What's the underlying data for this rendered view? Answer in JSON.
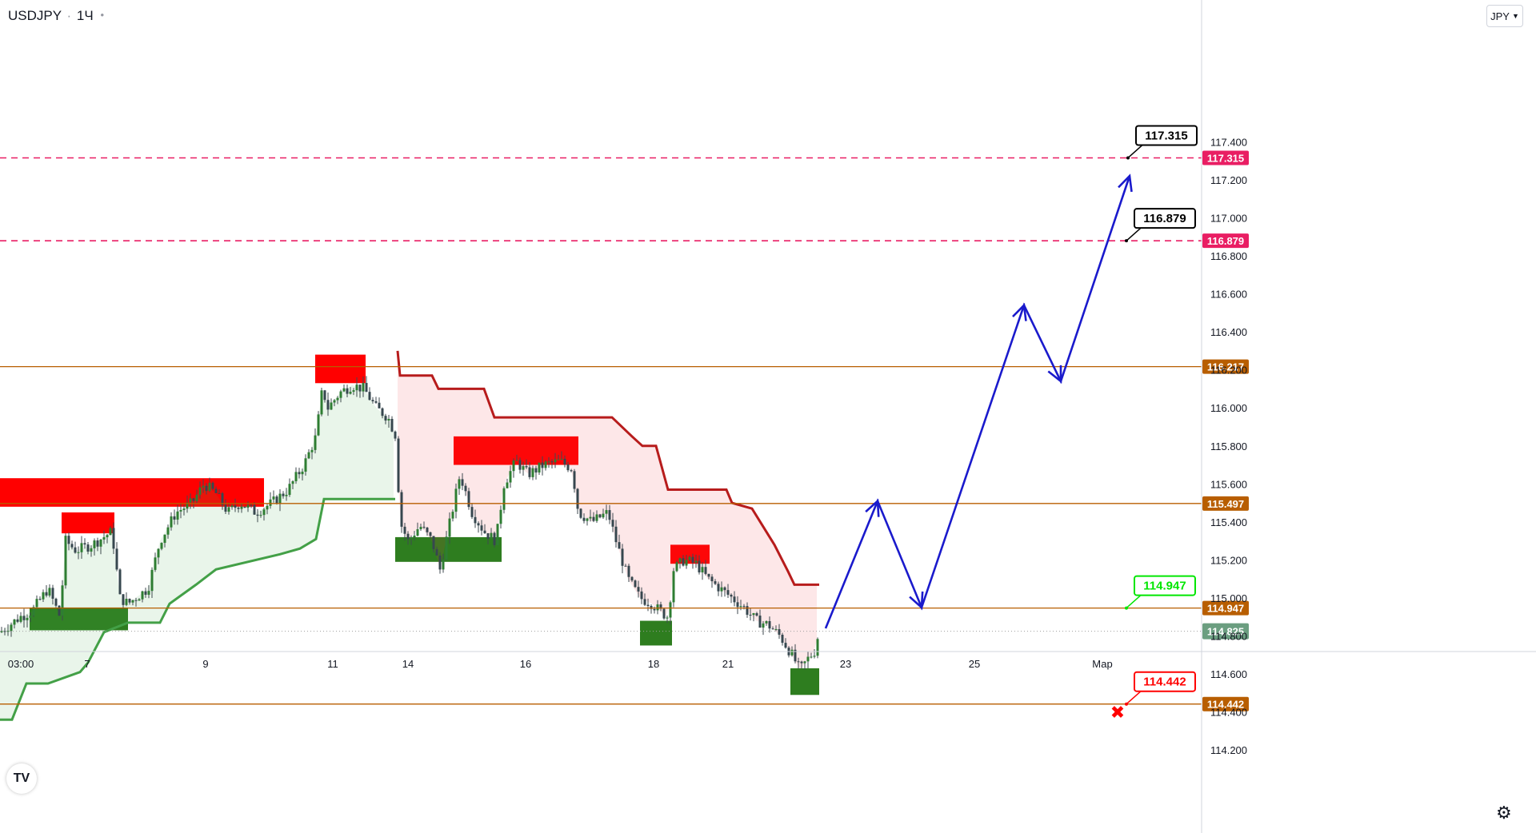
{
  "header": {
    "symbol": "USDJPY",
    "separator": "·",
    "interval": "1Ч",
    "currency_button": "JPY"
  },
  "chart_data": {
    "type": "candlestick",
    "title": "USDJPY · 1Ч",
    "y_unit": "JPY",
    "ylim": [
      114.1,
      117.5
    ],
    "xlim": [
      0,
      1495
    ],
    "y_ticks": [
      "117.400",
      "117.200",
      "117.000",
      "116.800",
      "116.600",
      "116.400",
      "116.200",
      "116.000",
      "115.800",
      "115.600",
      "115.400",
      "115.200",
      "115.000",
      "114.800",
      "114.600",
      "114.400",
      "114.200"
    ],
    "x_ticks": [
      {
        "label": "03:00",
        "x": 26
      },
      {
        "label": "7",
        "x": 109
      },
      {
        "label": "9",
        "x": 257
      },
      {
        "label": "11",
        "x": 416
      },
      {
        "label": "14",
        "x": 510
      },
      {
        "label": "16",
        "x": 657
      },
      {
        "label": "18",
        "x": 817
      },
      {
        "label": "21",
        "x": 910
      },
      {
        "label": "23",
        "x": 1057
      },
      {
        "label": "25",
        "x": 1218
      },
      {
        "label": "Мар",
        "x": 1378
      }
    ],
    "horizontal_levels": [
      {
        "price": 117.315,
        "label": "117.315",
        "style": "dashed",
        "color": "#e91e63"
      },
      {
        "price": 116.879,
        "label": "116.879",
        "style": "dashed",
        "color": "#e91e63"
      },
      {
        "price": 116.217,
        "label": "116.217",
        "style": "solid",
        "color": "#b85e00"
      },
      {
        "price": 115.497,
        "label": "115.497",
        "style": "solid",
        "color": "#b85e00"
      },
      {
        "price": 114.947,
        "label": "114.947",
        "style": "solid",
        "color": "#b85e00"
      },
      {
        "price": 114.442,
        "label": "114.442",
        "style": "solid",
        "color": "#b85e00"
      }
    ],
    "last_price": {
      "price": 114.825,
      "label": "114.825",
      "color": "#6b9e80"
    },
    "callouts": [
      {
        "price": 117.315,
        "label": "117.315",
        "x": 1410,
        "color": "#000000"
      },
      {
        "price": 116.879,
        "label": "116.879",
        "x": 1408,
        "color": "#000000"
      },
      {
        "price": 114.947,
        "label": "114.947",
        "x": 1408,
        "color": "#00e600"
      },
      {
        "price": 114.442,
        "label": "114.442",
        "x": 1408,
        "color": "#ff0000"
      }
    ],
    "stop_marker": {
      "x": 1397,
      "price": 114.4,
      "symbol": "✖",
      "color": "#ff0000"
    },
    "supply_zones": [
      {
        "x1": 0,
        "x2": 330,
        "hi": 115.63,
        "lo": 115.48
      },
      {
        "x1": 77,
        "x2": 143,
        "hi": 115.45,
        "lo": 115.34
      },
      {
        "x1": 394,
        "x2": 457,
        "hi": 116.28,
        "lo": 116.13
      },
      {
        "x1": 567,
        "x2": 723,
        "hi": 115.85,
        "lo": 115.7
      },
      {
        "x1": 838,
        "x2": 887,
        "hi": 115.28,
        "lo": 115.18
      }
    ],
    "demand_zones": [
      {
        "x1": 37,
        "x2": 160,
        "hi": 114.95,
        "lo": 114.83
      },
      {
        "x1": 494,
        "x2": 627,
        "hi": 115.32,
        "lo": 115.19
      },
      {
        "x1": 800,
        "x2": 840,
        "hi": 114.88,
        "lo": 114.75
      },
      {
        "x1": 988,
        "x2": 1024,
        "hi": 114.63,
        "lo": 114.49
      }
    ],
    "candle_anchors": [
      [
        0,
        114.82
      ],
      [
        25,
        114.9
      ],
      [
        40,
        114.93
      ],
      [
        60,
        115.05
      ],
      [
        75,
        114.9
      ],
      [
        82,
        115.3
      ],
      [
        95,
        115.25
      ],
      [
        115,
        115.28
      ],
      [
        140,
        115.35
      ],
      [
        150,
        115.0
      ],
      [
        160,
        114.97
      ],
      [
        185,
        115.05
      ],
      [
        200,
        115.3
      ],
      [
        220,
        115.45
      ],
      [
        240,
        115.5
      ],
      [
        255,
        115.6
      ],
      [
        270,
        115.55
      ],
      [
        285,
        115.45
      ],
      [
        300,
        115.5
      ],
      [
        320,
        115.45
      ],
      [
        340,
        115.5
      ],
      [
        360,
        115.57
      ],
      [
        380,
        115.7
      ],
      [
        395,
        115.85
      ],
      [
        403,
        116.1
      ],
      [
        410,
        116.0
      ],
      [
        425,
        116.08
      ],
      [
        440,
        116.12
      ],
      [
        455,
        116.1
      ],
      [
        470,
        116.0
      ],
      [
        485,
        115.95
      ],
      [
        495,
        115.85
      ],
      [
        500,
        115.4
      ],
      [
        510,
        115.3
      ],
      [
        525,
        115.38
      ],
      [
        540,
        115.3
      ],
      [
        550,
        115.15
      ],
      [
        560,
        115.35
      ],
      [
        575,
        115.65
      ],
      [
        590,
        115.45
      ],
      [
        605,
        115.35
      ],
      [
        620,
        115.3
      ],
      [
        630,
        115.6
      ],
      [
        645,
        115.72
      ],
      [
        660,
        115.65
      ],
      [
        680,
        115.7
      ],
      [
        700,
        115.72
      ],
      [
        715,
        115.68
      ],
      [
        723,
        115.45
      ],
      [
        740,
        115.4
      ],
      [
        760,
        115.45
      ],
      [
        770,
        115.3
      ],
      [
        785,
        115.1
      ],
      [
        800,
        115.0
      ],
      [
        815,
        114.97
      ],
      [
        825,
        114.93
      ],
      [
        835,
        114.9
      ],
      [
        842,
        115.15
      ],
      [
        855,
        115.2
      ],
      [
        870,
        115.18
      ],
      [
        885,
        115.1
      ],
      [
        900,
        115.05
      ],
      [
        915,
        115.0
      ],
      [
        930,
        114.95
      ],
      [
        945,
        114.88
      ],
      [
        960,
        114.86
      ],
      [
        975,
        114.8
      ],
      [
        990,
        114.7
      ],
      [
        1000,
        114.62
      ],
      [
        1010,
        114.68
      ],
      [
        1018,
        114.72
      ],
      [
        1024,
        114.83
      ]
    ],
    "trailing_stop_long": [
      [
        0,
        114.36
      ],
      [
        15,
        114.36
      ],
      [
        33,
        114.55
      ],
      [
        60,
        114.55
      ],
      [
        100,
        114.61
      ],
      [
        110,
        114.66
      ],
      [
        130,
        114.82
      ],
      [
        160,
        114.87
      ],
      [
        200,
        114.87
      ],
      [
        212,
        114.97
      ],
      [
        245,
        115.07
      ],
      [
        270,
        115.15
      ],
      [
        350,
        115.23
      ],
      [
        375,
        115.26
      ],
      [
        395,
        115.31
      ],
      [
        405,
        115.52
      ],
      [
        494,
        115.52
      ]
    ],
    "trailing_stop_short": [
      [
        497,
        116.3
      ],
      [
        500,
        116.17
      ],
      [
        540,
        116.17
      ],
      [
        548,
        116.1
      ],
      [
        605,
        116.1
      ],
      [
        618,
        115.95
      ],
      [
        765,
        115.95
      ],
      [
        790,
        115.85
      ],
      [
        803,
        115.8
      ],
      [
        820,
        115.8
      ],
      [
        835,
        115.57
      ],
      [
        908,
        115.57
      ],
      [
        915,
        115.5
      ],
      [
        940,
        115.47
      ],
      [
        968,
        115.28
      ],
      [
        985,
        115.14
      ],
      [
        993,
        115.07
      ],
      [
        1024,
        115.07
      ]
    ],
    "projection_path": [
      [
        1032,
        114.84
      ],
      [
        1097,
        115.51
      ],
      [
        1152,
        114.95
      ],
      [
        1280,
        116.54
      ],
      [
        1326,
        116.14
      ],
      [
        1412,
        117.22
      ]
    ],
    "grid": false,
    "legend": "none"
  }
}
